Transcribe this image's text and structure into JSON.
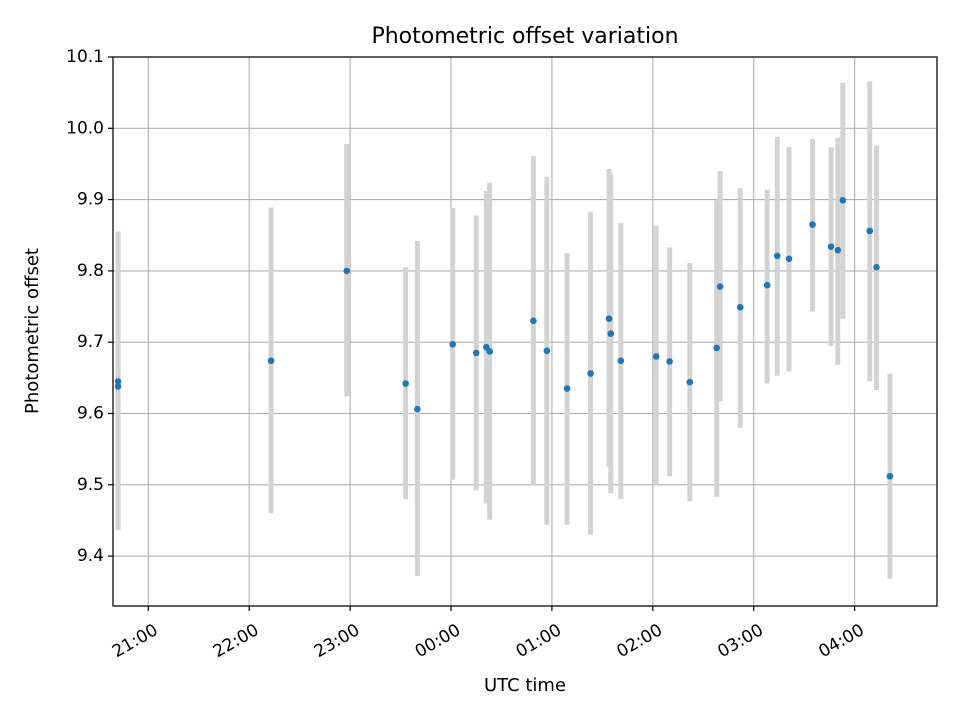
{
  "chart_data": {
    "type": "scatter",
    "title": "Photometric offset variation",
    "xlabel": "UTC time",
    "ylabel": "Photometric offset",
    "x_axis": {
      "kind": "time",
      "range": [
        "20:39",
        "04:49"
      ],
      "ticks": [
        "21:00",
        "22:00",
        "23:00",
        "00:00",
        "01:00",
        "02:00",
        "03:00",
        "04:00"
      ],
      "tick_rotation": 30
    },
    "y_axis": {
      "range": [
        9.33,
        10.1
      ],
      "ticks": [
        "9.4",
        "9.5",
        "9.6",
        "9.7",
        "9.8",
        "9.9",
        "10.0",
        "10.1"
      ]
    },
    "grid": true,
    "marker_color": "#1f77b4",
    "errorbar_color": "#d3d3d3",
    "points": [
      {
        "x": "20:42",
        "y": 9.645,
        "err_low": 9.437,
        "err_high": 9.855
      },
      {
        "x": "20:42",
        "y": 9.638,
        "err_low": 9.437,
        "err_high": 9.855
      },
      {
        "x": "22:13",
        "y": 9.674,
        "err_low": 9.46,
        "err_high": 9.889
      },
      {
        "x": "22:58",
        "y": 9.8,
        "err_low": 9.624,
        "err_high": 9.978
      },
      {
        "x": "23:33",
        "y": 9.642,
        "err_low": 9.48,
        "err_high": 9.805
      },
      {
        "x": "23:40",
        "y": 9.606,
        "err_low": 9.372,
        "err_high": 9.842
      },
      {
        "x": "00:01",
        "y": 9.697,
        "err_low": 9.507,
        "err_high": 9.888
      },
      {
        "x": "00:15",
        "y": 9.685,
        "err_low": 9.492,
        "err_high": 9.878
      },
      {
        "x": "00:21",
        "y": 9.693,
        "err_low": 9.474,
        "err_high": 9.912
      },
      {
        "x": "00:23",
        "y": 9.687,
        "err_low": 9.451,
        "err_high": 9.924
      },
      {
        "x": "00:49",
        "y": 9.73,
        "err_low": 9.5,
        "err_high": 9.961
      },
      {
        "x": "00:57",
        "y": 9.688,
        "err_low": 9.444,
        "err_high": 9.932
      },
      {
        "x": "01:09",
        "y": 9.635,
        "err_low": 9.444,
        "err_high": 9.825
      },
      {
        "x": "01:23",
        "y": 9.656,
        "err_low": 9.43,
        "err_high": 9.883
      },
      {
        "x": "01:34",
        "y": 9.733,
        "err_low": 9.525,
        "err_high": 9.943
      },
      {
        "x": "01:35",
        "y": 9.712,
        "err_low": 9.488,
        "err_high": 9.936
      },
      {
        "x": "01:41",
        "y": 9.674,
        "err_low": 9.48,
        "err_high": 9.867
      },
      {
        "x": "02:02",
        "y": 9.68,
        "err_low": 9.5,
        "err_high": 9.863
      },
      {
        "x": "02:10",
        "y": 9.673,
        "err_low": 9.512,
        "err_high": 9.833
      },
      {
        "x": "02:22",
        "y": 9.644,
        "err_low": 9.477,
        "err_high": 9.811
      },
      {
        "x": "02:38",
        "y": 9.692,
        "err_low": 9.483,
        "err_high": 9.9
      },
      {
        "x": "02:40",
        "y": 9.778,
        "err_low": 9.617,
        "err_high": 9.94
      },
      {
        "x": "02:52",
        "y": 9.749,
        "err_low": 9.58,
        "err_high": 9.916
      },
      {
        "x": "03:08",
        "y": 9.78,
        "err_low": 9.642,
        "err_high": 9.914
      },
      {
        "x": "03:14",
        "y": 9.821,
        "err_low": 9.653,
        "err_high": 9.988
      },
      {
        "x": "03:21",
        "y": 9.817,
        "err_low": 9.659,
        "err_high": 9.974
      },
      {
        "x": "03:35",
        "y": 9.865,
        "err_low": 9.743,
        "err_high": 9.985
      },
      {
        "x": "03:46",
        "y": 9.834,
        "err_low": 9.695,
        "err_high": 9.973
      },
      {
        "x": "03:50",
        "y": 9.829,
        "err_low": 9.668,
        "err_high": 9.987
      },
      {
        "x": "03:53",
        "y": 9.899,
        "err_low": 9.733,
        "err_high": 10.064
      },
      {
        "x": "04:09",
        "y": 9.856,
        "err_low": 9.645,
        "err_high": 10.066
      },
      {
        "x": "04:13",
        "y": 9.805,
        "err_low": 9.633,
        "err_high": 9.976
      },
      {
        "x": "04:21",
        "y": 9.512,
        "err_low": 9.368,
        "err_high": 9.656
      }
    ]
  }
}
